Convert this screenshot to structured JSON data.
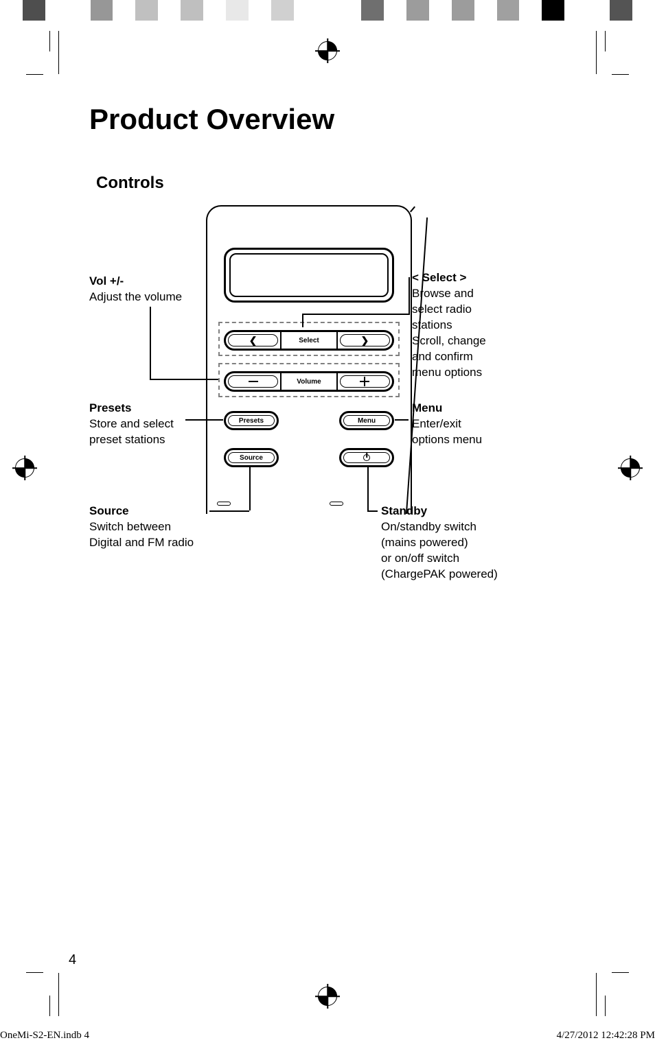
{
  "colorbar": [
    "#ffffff",
    "#4e4e4e",
    "#ffffff",
    "#ffffff",
    "#979797",
    "#ffffff",
    "#c0c0c0",
    "#ffffff",
    "#bfbfbf",
    "#ffffff",
    "#e8e8e8",
    "#ffffff",
    "#d0d0d0",
    "#ffffff",
    "#ffffff",
    "#ffffff",
    "#6f6f6f",
    "#ffffff",
    "#9c9c9c",
    "#ffffff",
    "#9c9c9c",
    "#ffffff",
    "#a0a0a0",
    "#ffffff",
    "#000000",
    "#ffffff",
    "#ffffff",
    "#545454",
    "#ffffff"
  ],
  "heading": "Product Overview",
  "subheading": "Controls",
  "buttons": {
    "select_center": "Select",
    "volume_center": "Volume",
    "presets": "Presets",
    "menu": "Menu",
    "source": "Source"
  },
  "callouts": {
    "vol": {
      "head": "Vol +/-",
      "body": "Adjust the volume"
    },
    "presets": {
      "head": "Presets",
      "body": "Store and select\npreset stations"
    },
    "source": {
      "head": "Source",
      "body": "Switch between\nDigital and FM radio"
    },
    "select": {
      "head": "< Select >",
      "body": "Browse and\nselect radio\nstations\nScroll, change\nand confirm\nmenu options"
    },
    "menu": {
      "head": "Menu",
      "body": "Enter/exit\noptions menu"
    },
    "standby": {
      "head": "Standby",
      "body": "On/standby switch\n(mains powered)\nor on/off switch\n(ChargePAK powered)"
    }
  },
  "page_number": "4",
  "slug": {
    "file": "OneMi-S2-EN.indb   4",
    "datetime": "4/27/2012   12:42:28 PM"
  }
}
